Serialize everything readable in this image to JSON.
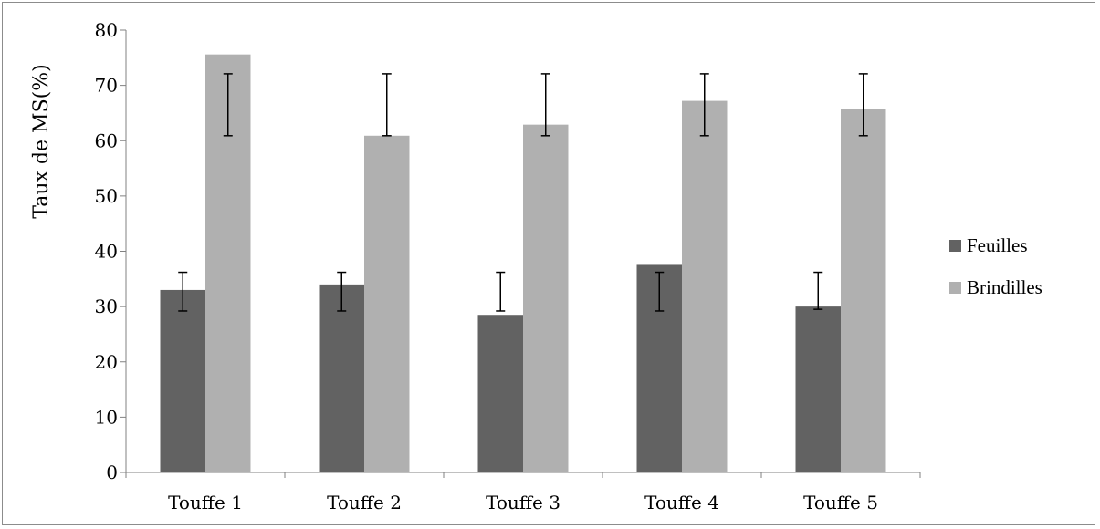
{
  "chart_data": {
    "type": "bar",
    "categories": [
      "Touffe 1",
      "Touffe 2",
      "Touffe 3",
      "Touffe 4",
      "Touffe 5"
    ],
    "series": [
      {
        "name": "Feuilles",
        "color": "#626262",
        "values": [
          33,
          34,
          28.5,
          37.7,
          30
        ],
        "error_low": [
          29.2,
          29.2,
          29.2,
          29.2,
          29.5
        ],
        "error_high": [
          36.2,
          36.2,
          36.2,
          36.2,
          36.2
        ]
      },
      {
        "name": "Brindilles",
        "color": "#b0b0b0",
        "values": [
          75.6,
          60.9,
          62.9,
          67.2,
          65.8
        ],
        "error_low": [
          60.9,
          60.9,
          60.9,
          60.9,
          60.9
        ],
        "error_high": [
          72.1,
          72.1,
          72.1,
          72.1,
          72.1
        ]
      }
    ],
    "xlabel": "",
    "ylabel": "Taux de MS(%)",
    "ylim": [
      0,
      80
    ],
    "yticks": [
      0,
      10,
      20,
      30,
      40,
      50,
      60,
      70,
      80
    ],
    "grid": false,
    "legend_position": "right"
  }
}
